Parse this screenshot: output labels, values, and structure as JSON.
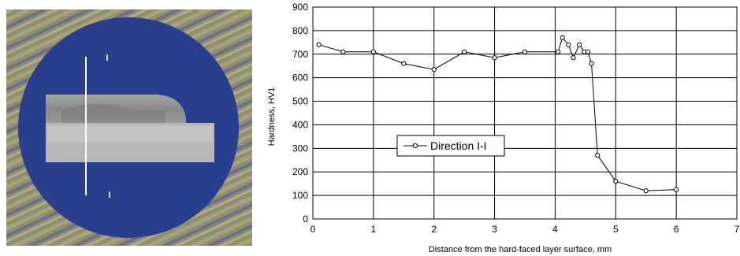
{
  "photo": {
    "section_marker_top": "I",
    "section_marker_bottom": "I"
  },
  "chart_data": {
    "type": "line",
    "title": "",
    "xlabel": "Distance from the hard-faced layer surface, mm",
    "ylabel": "Hardness, HV1",
    "xlim": [
      0,
      7
    ],
    "ylim": [
      0,
      900
    ],
    "xticks": [
      0,
      1,
      2,
      3,
      4,
      5,
      6,
      7
    ],
    "yticks": [
      0,
      100,
      200,
      300,
      400,
      500,
      600,
      700,
      800,
      900
    ],
    "grid": true,
    "legend_position": "middle-left",
    "series": [
      {
        "name": "Direction I-I",
        "color": "#000000",
        "marker": "open-circle",
        "x": [
          0.1,
          0.5,
          1.0,
          1.5,
          2.0,
          2.5,
          3.0,
          3.5,
          4.05,
          4.12,
          4.22,
          4.3,
          4.4,
          4.48,
          4.54,
          4.6,
          4.7,
          5.0,
          5.5,
          6.0
        ],
        "y": [
          740,
          710,
          710,
          660,
          635,
          710,
          685,
          710,
          710,
          770,
          740,
          685,
          740,
          710,
          710,
          660,
          270,
          160,
          120,
          125
        ]
      }
    ]
  }
}
